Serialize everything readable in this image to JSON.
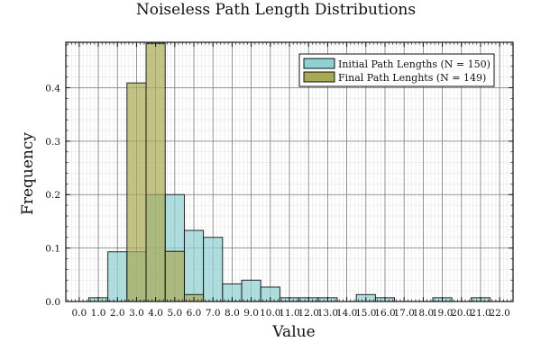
{
  "chart_data": {
    "type": "bar",
    "title": "Noiseless Path Length Distributions",
    "xlabel": "Value",
    "ylabel": "Frequency",
    "xlim": [
      -0.7,
      22.7
    ],
    "ylim": [
      0,
      0.485
    ],
    "x_ticks": [
      "0.0",
      "1.0",
      "2.0",
      "3.0",
      "4.0",
      "5.0",
      "6.0",
      "7.0",
      "8.0",
      "9.0",
      "10.0",
      "11.0",
      "12.0",
      "13.0",
      "14.0",
      "15.0",
      "16.0",
      "17.0",
      "18.0",
      "19.0",
      "20.0",
      "21.0",
      "22.0"
    ],
    "y_ticks": [
      "0.0",
      "0.1",
      "0.2",
      "0.3",
      "0.4"
    ],
    "grid": true,
    "legend_position": "top-right",
    "bin_width": 1,
    "series": [
      {
        "name": "Initial Path Lengths (N = 150)",
        "color": "#8fd0d0",
        "bins": [
          [
            0.5,
            0.007
          ],
          [
            1.5,
            0.093
          ],
          [
            2.5,
            0.093
          ],
          [
            3.5,
            0.2
          ],
          [
            4.5,
            0.2
          ],
          [
            5.5,
            0.133
          ],
          [
            6.5,
            0.12
          ],
          [
            7.5,
            0.033
          ],
          [
            8.5,
            0.04
          ],
          [
            9.5,
            0.027
          ],
          [
            10.5,
            0.007
          ],
          [
            11.5,
            0.007
          ],
          [
            12.5,
            0.007
          ],
          [
            14.5,
            0.013
          ],
          [
            15.5,
            0.007
          ],
          [
            18.5,
            0.007
          ],
          [
            20.5,
            0.007
          ]
        ]
      },
      {
        "name": "Final Path Lenghts (N = 149)",
        "color": "#a9a955",
        "bins": [
          [
            2.5,
            0.409
          ],
          [
            3.5,
            0.483
          ],
          [
            4.5,
            0.094
          ],
          [
            5.5,
            0.013
          ]
        ]
      }
    ]
  }
}
